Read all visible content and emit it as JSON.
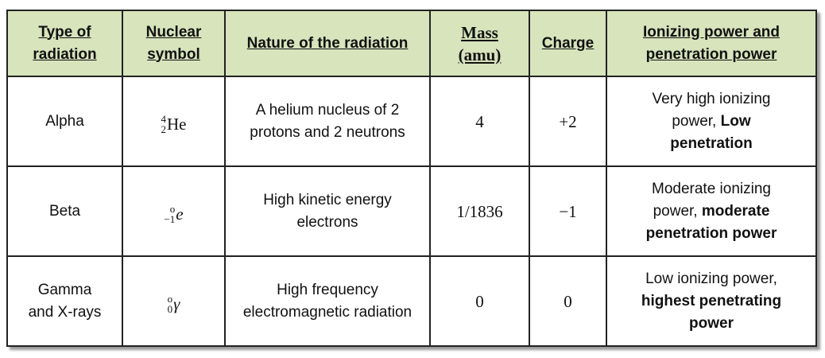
{
  "table": {
    "header": [
      "Type of radiation",
      "Nuclear symbol",
      "Nature of the radiation",
      "Mass (amu)",
      "Charge",
      "Ionizing power and penetration power"
    ],
    "rows": [
      {
        "type": "Alpha",
        "symbol": {
          "top": "4",
          "bottom": "2",
          "letter": "He",
          "italic": false
        },
        "nature": "A helium nucleus of 2 protons and 2 neutrons",
        "mass": 4,
        "charge": "+2",
        "power": [
          {
            "text": "Very high ionizing power,",
            "bold": false
          },
          {
            "text": "Low penetration",
            "bold": true
          }
        ]
      },
      {
        "type": "Beta",
        "symbol": {
          "top": "o",
          "bottom": "−1",
          "letter": "e",
          "italic": true
        },
        "nature": "High kinetic energy electrons",
        "mass": "1/1836",
        "charge": "−1",
        "power": [
          {
            "text": "Moderate ionizing power,",
            "bold": false
          },
          {
            "text": "moderate penetration power",
            "bold": true
          }
        ]
      },
      {
        "type": "Gamma and X-rays",
        "symbol": {
          "top": "o",
          "bottom": "0",
          "letter": "γ",
          "italic": true
        },
        "nature": "High frequency electromagnetic radiation",
        "mass": 0,
        "charge": 0,
        "power": [
          {
            "text": "Low ionizing power,",
            "bold": false
          },
          {
            "text": "highest penetrating power",
            "bold": true
          }
        ]
      }
    ]
  }
}
